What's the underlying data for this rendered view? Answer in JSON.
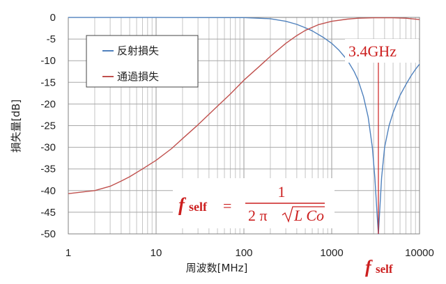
{
  "chart_data": {
    "type": "line",
    "xscale": "log",
    "xlim": [
      1,
      10000
    ],
    "ylim": [
      -50,
      0
    ],
    "grid": true,
    "xlabel": "周波数[MHz]",
    "ylabel": "損失量[dB]",
    "xticks": [
      "1",
      "10",
      "100",
      "1000",
      "10000"
    ],
    "yticks": [
      "0",
      "-5",
      "-10",
      "-15",
      "-20",
      "-25",
      "-30",
      "-35",
      "-40",
      "-45",
      "-50"
    ],
    "legend_position": "top-left",
    "series": [
      {
        "name": "反射損失",
        "color": "#4f81bd",
        "points": [
          [
            1,
            -0.01
          ],
          [
            10,
            -0.02
          ],
          [
            100,
            -0.05
          ],
          [
            200,
            -0.3
          ],
          [
            300,
            -0.9
          ],
          [
            400,
            -1.6
          ],
          [
            500,
            -2.4
          ],
          [
            600,
            -3.1
          ],
          [
            800,
            -4.6
          ],
          [
            1000,
            -6.0
          ],
          [
            1200,
            -7.5
          ],
          [
            1500,
            -9.8
          ],
          [
            1800,
            -12.5
          ],
          [
            2000,
            -14.5
          ],
          [
            2300,
            -18.3
          ],
          [
            2600,
            -23.0
          ],
          [
            2900,
            -30.0
          ],
          [
            3100,
            -37.0
          ],
          [
            3300,
            -46.0
          ],
          [
            3400,
            -50.0
          ],
          [
            3500,
            -45.5
          ],
          [
            3700,
            -37.0
          ],
          [
            4000,
            -30.0
          ],
          [
            4500,
            -25.0
          ],
          [
            5000,
            -22.0
          ],
          [
            6000,
            -18.0
          ],
          [
            7000,
            -15.5
          ],
          [
            8000,
            -13.5
          ],
          [
            9000,
            -12.0
          ],
          [
            10000,
            -10.8
          ]
        ]
      },
      {
        "name": "通過損失",
        "color": "#c0504d",
        "points": [
          [
            1,
            -40.7
          ],
          [
            2,
            -40.0
          ],
          [
            3,
            -39.0
          ],
          [
            4,
            -37.8
          ],
          [
            5,
            -36.8
          ],
          [
            7,
            -35.0
          ],
          [
            10,
            -33.0
          ],
          [
            15,
            -30.3
          ],
          [
            20,
            -28.0
          ],
          [
            30,
            -24.8
          ],
          [
            50,
            -20.5
          ],
          [
            70,
            -17.7
          ],
          [
            100,
            -14.5
          ],
          [
            150,
            -11.3
          ],
          [
            200,
            -9.0
          ],
          [
            300,
            -6.0
          ],
          [
            400,
            -4.2
          ],
          [
            500,
            -3.0
          ],
          [
            700,
            -1.7
          ],
          [
            1000,
            -0.9
          ],
          [
            1500,
            -0.4
          ],
          [
            2000,
            -0.2
          ],
          [
            3000,
            -0.1
          ],
          [
            5000,
            -0.1
          ],
          [
            7000,
            -0.2
          ],
          [
            10000,
            -0.5
          ]
        ]
      }
    ],
    "annotations": {
      "resonance_freq": "3.4GHz",
      "resonance_x": 3400,
      "fself_axis_label": "f self",
      "formula": {
        "lhs_f": "f",
        "lhs_sub": "self",
        "equals": "=",
        "numerator": "1",
        "denominator_prefix": "2 π",
        "radicand": "L Co"
      }
    }
  }
}
